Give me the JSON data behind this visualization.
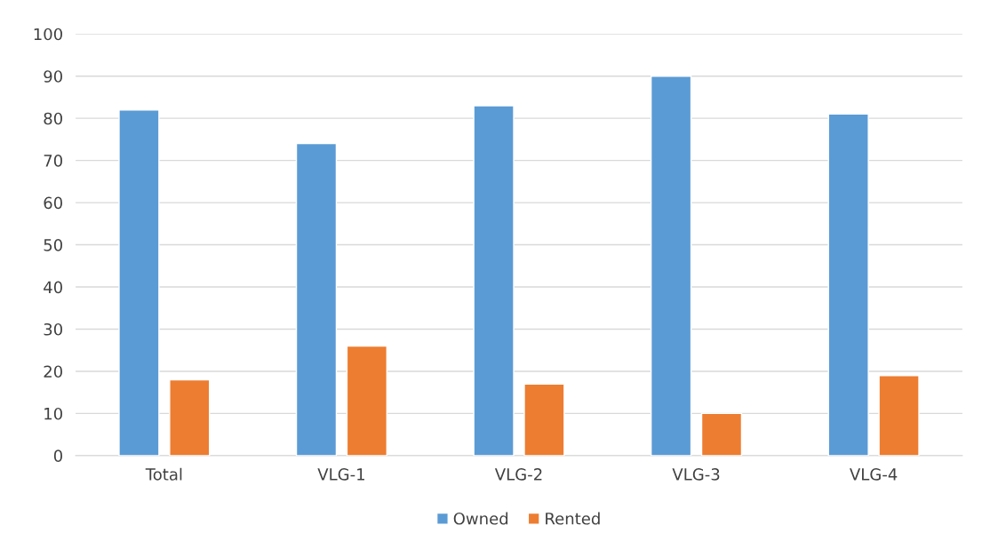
{
  "chart_data": {
    "type": "bar",
    "categories": [
      "Total",
      "VLG-1",
      "VLG-2",
      "VLG-3",
      "VLG-4"
    ],
    "series": [
      {
        "name": "Owned",
        "color": "#5b9bd5",
        "values": [
          82,
          74,
          83,
          90,
          81
        ]
      },
      {
        "name": "Rented",
        "color": "#ed7d31",
        "values": [
          18,
          26,
          17,
          10,
          19
        ]
      }
    ],
    "ylim": [
      0,
      100
    ],
    "yticks": [
      0,
      10,
      20,
      30,
      40,
      50,
      60,
      70,
      80,
      90,
      100
    ],
    "grid": "y",
    "legend": "bottom"
  }
}
